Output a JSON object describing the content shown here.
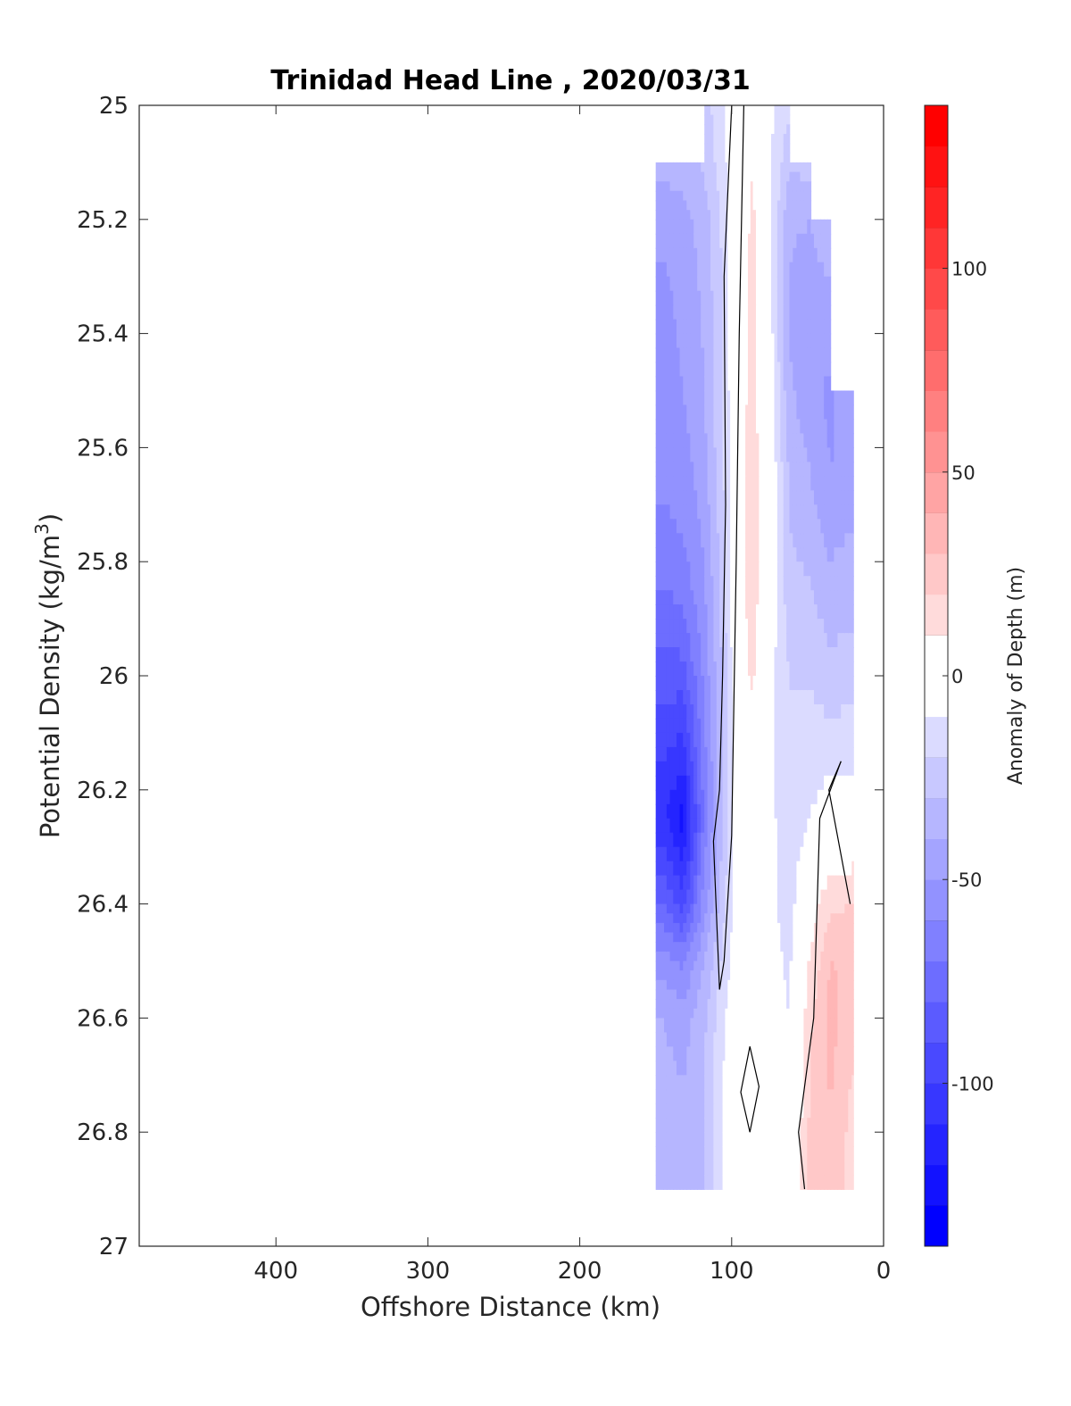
{
  "chart_data": {
    "type": "heatmap",
    "subtype": "filled-contour section",
    "title": "Trinidad Head Line , 2020/03/31",
    "xlabel": "Offshore Distance (km)",
    "ylabel": "Potential Density (kg/m",
    "ylabel_superscript": "3",
    "ylabel_suffix": ")",
    "xlim": [
      490,
      0
    ],
    "x_reversed": true,
    "ylim": [
      25,
      27
    ],
    "y_reversed": true,
    "x_ticks": [
      400,
      300,
      200,
      100,
      0
    ],
    "y_ticks": [
      25,
      25.2,
      25.4,
      25.6,
      25.8,
      26,
      26.2,
      26.4,
      26.6,
      26.8,
      27
    ],
    "grid": false,
    "colorbar": {
      "label": "Anomaly of Depth (m)",
      "clim": [
        -140,
        140
      ],
      "step": 10,
      "ticks": [
        -100,
        -50,
        0,
        50,
        100
      ],
      "negative_color": "#0000ff",
      "positive_color": "#ff0000",
      "neutral_color": "#ffffff"
    },
    "data_region": {
      "x_range": [
        20,
        150
      ],
      "y_range": [
        25,
        26.9
      ]
    },
    "columns": [
      {
        "x": 145,
        "values": [
          null,
          -36,
          -48,
          -52,
          -55,
          -58,
          -65,
          -80,
          -95,
          -108,
          -80,
          -55,
          -40,
          -36,
          -34
        ]
      },
      {
        "x": 132,
        "values": [
          null,
          -34,
          -44,
          -48,
          -50,
          -55,
          -62,
          -78,
          -100,
          -125,
          -95,
          -62,
          -45,
          -38,
          -36
        ]
      },
      {
        "x": 118,
        "values": [
          -25,
          -28,
          -35,
          -38,
          -40,
          -44,
          -50,
          -55,
          -62,
          -68,
          -55,
          -40,
          -32,
          -30,
          -30
        ]
      },
      {
        "x": 106,
        "values": [
          -12,
          -14,
          -18,
          -20,
          -20,
          -22,
          -25,
          -28,
          -30,
          -30,
          -24,
          -18,
          -12,
          -10,
          -10
        ]
      },
      {
        "x": 96,
        "values": [
          -2,
          2,
          3,
          4,
          4,
          5,
          4,
          3,
          1,
          -2,
          -3,
          -2,
          0,
          -1,
          -2
        ]
      },
      {
        "x": 86,
        "values": [
          5,
          10,
          12,
          14,
          14,
          15,
          16,
          14,
          8,
          2,
          -2,
          -1,
          -3,
          -2,
          -3
        ]
      },
      {
        "x": 74,
        "values": [
          -8,
          -10,
          -10,
          -8,
          -5,
          -2,
          -3,
          -6,
          -8,
          -8,
          -8,
          -6,
          -5,
          -4,
          -5
        ]
      },
      {
        "x": 62,
        "values": [
          -18,
          -28,
          -38,
          -42,
          -38,
          -32,
          -28,
          -22,
          -18,
          -16,
          -14,
          -12,
          -10,
          -8,
          -6
        ]
      },
      {
        "x": 48,
        "values": [
          null,
          -26,
          -40,
          -46,
          -48,
          -40,
          -32,
          -24,
          -16,
          -10,
          3,
          12,
          18,
          22,
          24
        ]
      },
      {
        "x": 35,
        "values": [
          null,
          null,
          -30,
          -44,
          -52,
          -50,
          -40,
          -30,
          -18,
          -2,
          18,
          30,
          34,
          30,
          25
        ]
      },
      {
        "x": 21,
        "values": [
          null,
          null,
          null,
          null,
          -42,
          -48,
          -36,
          -28,
          -16,
          -4,
          20,
          28,
          24,
          18,
          16
        ]
      }
    ],
    "row_densities": [
      25.0,
      25.1,
      25.2,
      25.35,
      25.5,
      25.65,
      25.8,
      25.95,
      26.1,
      26.25,
      26.4,
      26.5,
      26.6,
      26.75,
      26.9
    ],
    "zero_contours": [
      [
        [
          100,
          25.0
        ],
        [
          105,
          25.3
        ],
        [
          104,
          25.7
        ],
        [
          106,
          26.0
        ],
        [
          108,
          26.2
        ],
        [
          112,
          26.29
        ],
        [
          108,
          26.55
        ],
        [
          105,
          26.5
        ],
        [
          100,
          26.28
        ],
        [
          97,
          25.8
        ],
        [
          95,
          25.4
        ],
        [
          92,
          25.0
        ]
      ],
      [
        [
          88,
          26.65
        ],
        [
          94,
          26.73
        ],
        [
          88,
          26.8
        ],
        [
          82,
          26.72
        ]
      ],
      [
        [
          28,
          26.15
        ],
        [
          36,
          26.2
        ],
        [
          22,
          26.4
        ]
      ],
      [
        [
          28,
          26.15
        ],
        [
          42,
          26.25
        ],
        [
          46,
          26.6
        ],
        [
          56,
          26.8
        ],
        [
          52,
          26.9
        ]
      ]
    ]
  }
}
